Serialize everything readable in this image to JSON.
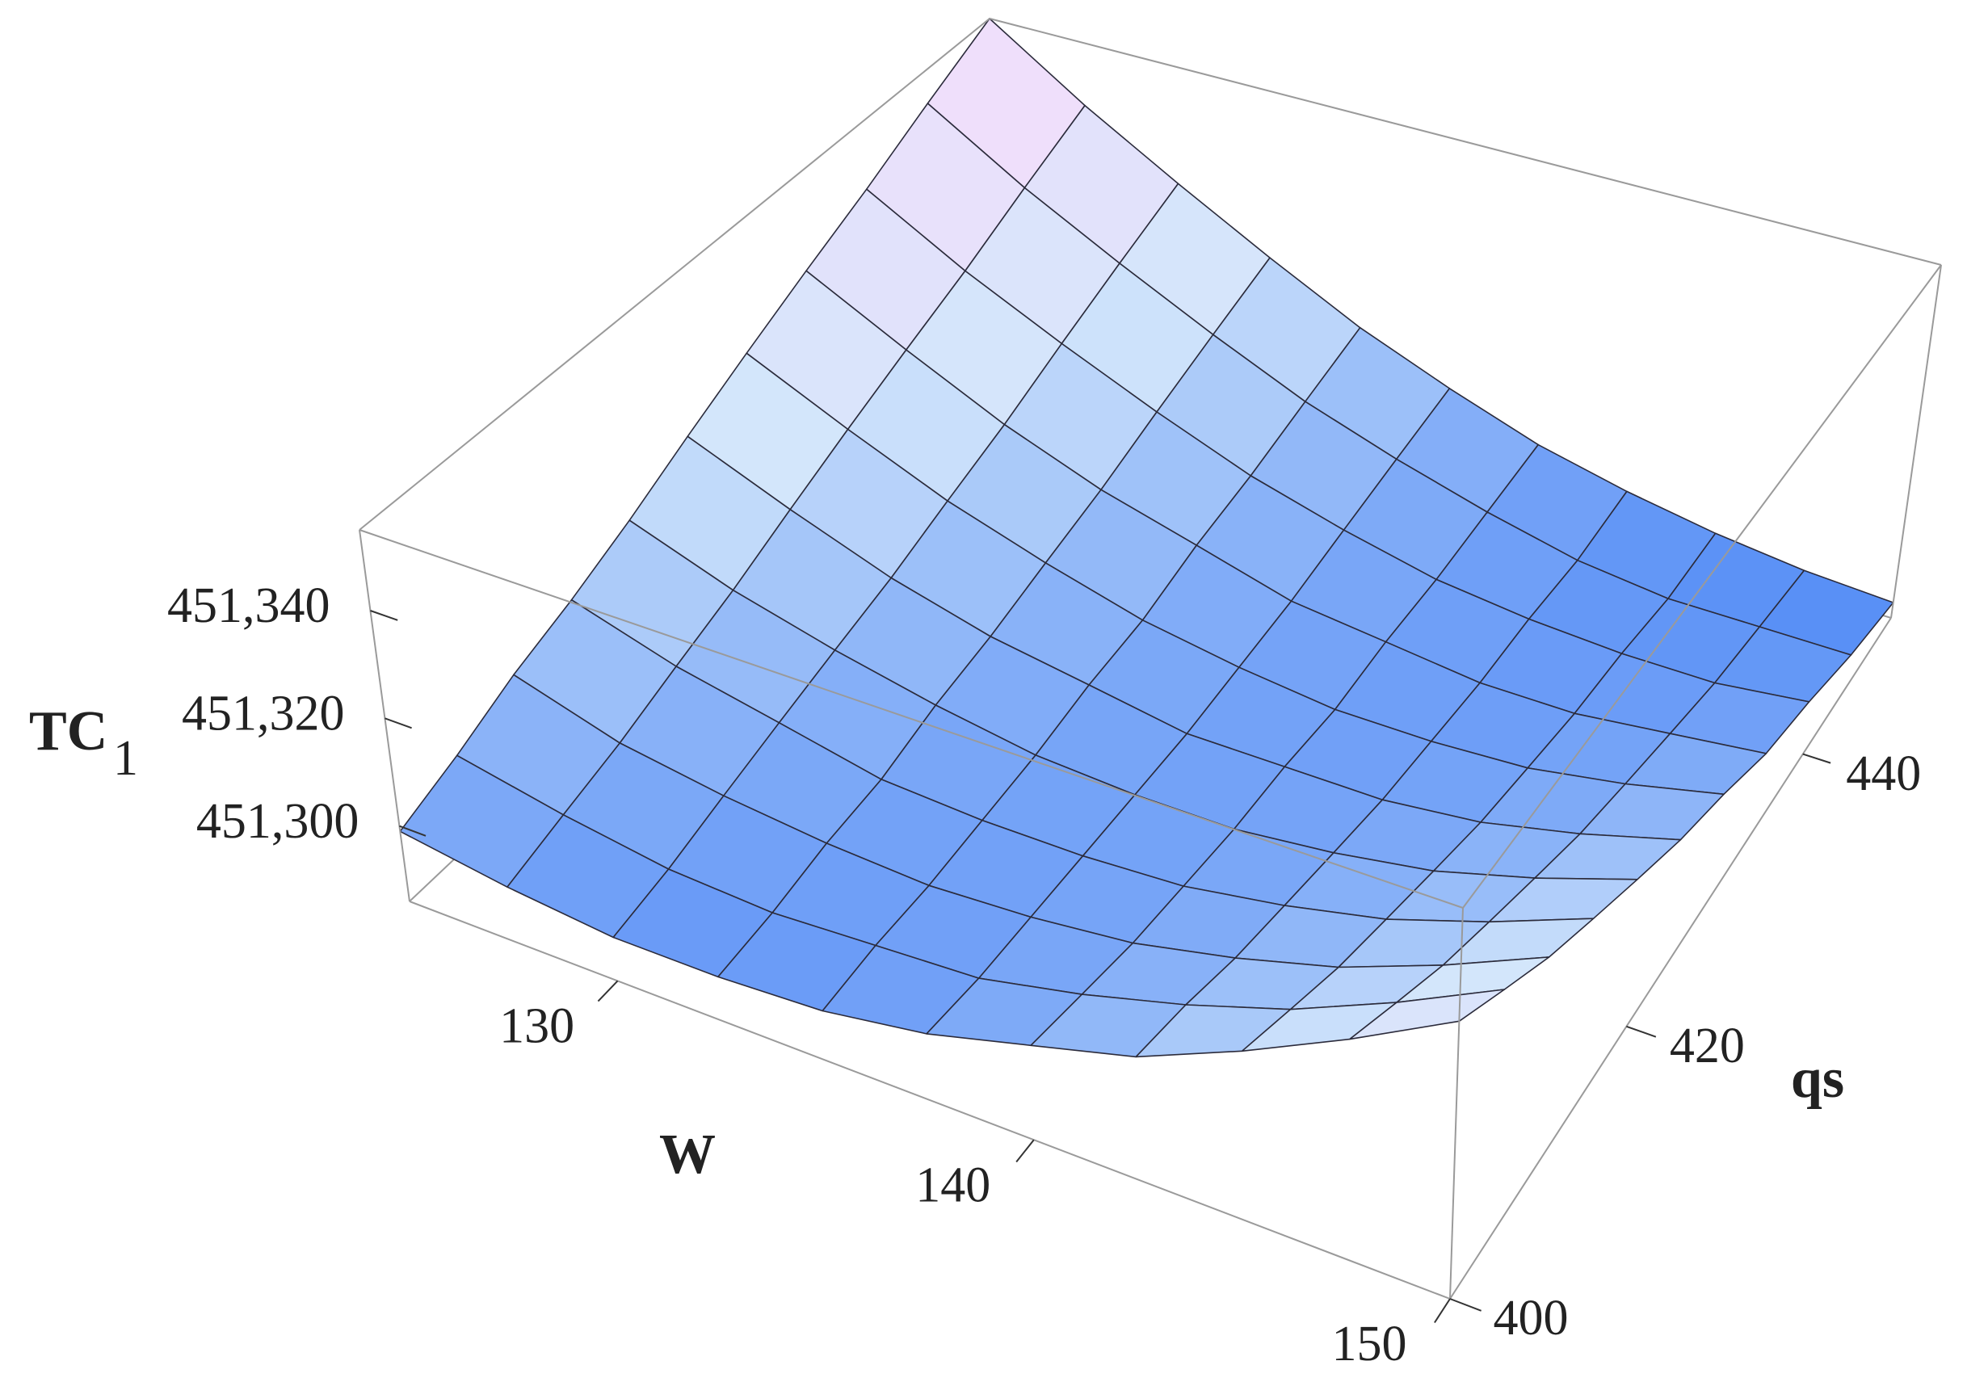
{
  "chart_data": {
    "type": "surface",
    "xlabel": "W",
    "ylabel": "qs",
    "zlabel": "TC",
    "zlabel_subscript": "1",
    "x": [
      125,
      127.5,
      130,
      132.5,
      135,
      137.5,
      140,
      142.5,
      145,
      147.5,
      150
    ],
    "y": [
      400,
      405,
      410,
      415,
      420,
      425,
      430,
      435,
      440,
      445,
      450
    ],
    "z": [
      [
        451299,
        451296,
        451294,
        451294,
        451295,
        451298,
        451303,
        451308,
        451316,
        451325,
        451335
      ],
      [
        451303,
        451299,
        451296,
        451295,
        451296,
        451297,
        451301,
        451306,
        451312,
        451320,
        451329
      ],
      [
        451308,
        451302,
        451299,
        451297,
        451296,
        451297,
        451299,
        451303,
        451308,
        451315,
        451323
      ],
      [
        451312,
        451306,
        451302,
        451298,
        451297,
        451297,
        451298,
        451301,
        451305,
        451311,
        451318
      ],
      [
        451317,
        451310,
        451305,
        451301,
        451298,
        451297,
        451297,
        451299,
        451302,
        451307,
        451313
      ],
      [
        451323,
        451315,
        451308,
        451303,
        451300,
        451297,
        451297,
        451297,
        451299,
        451303,
        451308
      ],
      [
        451329,
        451320,
        451312,
        451306,
        451301,
        451298,
        451296,
        451296,
        451297,
        451300,
        451304
      ],
      [
        451335,
        451325,
        451316,
        451309,
        451304,
        451299,
        451297,
        451295,
        451295,
        451297,
        451299
      ],
      [
        451341,
        451330,
        451321,
        451313,
        451306,
        451301,
        451297,
        451295,
        451294,
        451294,
        451296
      ],
      [
        451348,
        451336,
        451326,
        451317,
        451309,
        451303,
        451298,
        451294,
        451292,
        451292,
        451292
      ],
      [
        451355,
        451342,
        451331,
        451321,
        451312,
        451305,
        451299,
        451295,
        451292,
        451290,
        451289
      ]
    ],
    "xlim": [
      125,
      150
    ],
    "ylim": [
      400,
      450
    ],
    "zlim": [
      451286,
      451355
    ],
    "xticks": [
      130,
      140,
      150
    ],
    "yticks": [
      400,
      420,
      440
    ],
    "zticks": [
      {
        "value": 451300,
        "label": "451,300"
      },
      {
        "value": 451320,
        "label": "451,320"
      },
      {
        "value": 451340,
        "label": "451,340"
      }
    ],
    "colors": [
      "#4682f5",
      "#d2e6fb",
      "#fbdcfb"
    ],
    "mesh_color": "#2b2b3b",
    "box_color": "#9a9a9a"
  }
}
